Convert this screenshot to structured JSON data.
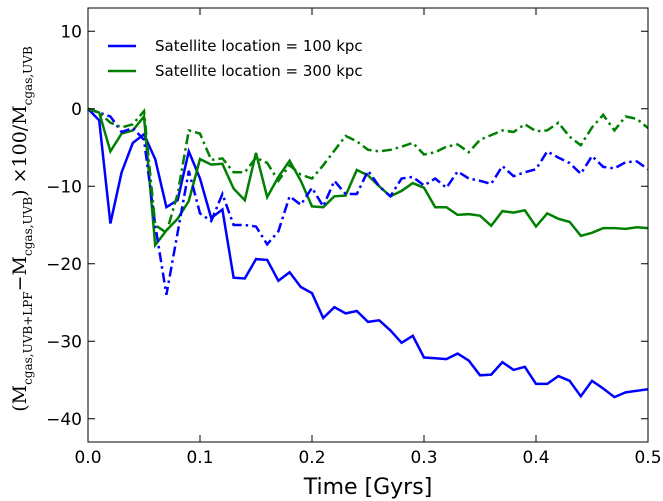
{
  "chart_data": {
    "type": "line",
    "title": "",
    "xlabel": "Time [Gyrs]",
    "ylabel": {
      "open": "(M",
      "sub1": "cgas,UVB+LPF",
      "mid": "−M",
      "sub2": "cgas,UVB",
      "mid2": ") ×100/M",
      "sub3": "cgas,UVB"
    },
    "xlim": [
      0.0,
      0.5
    ],
    "ylim": [
      -43,
      13
    ],
    "xticks": [
      0.0,
      0.1,
      0.2,
      0.3,
      0.4,
      0.5
    ],
    "xtick_labels": [
      "0.0",
      "0.1",
      "0.2",
      "0.3",
      "0.4",
      "0.5"
    ],
    "yticks": [
      10,
      0,
      -10,
      -20,
      -30,
      -40
    ],
    "ytick_labels": [
      "10",
      "0",
      "−10",
      "−20",
      "−30",
      "−40"
    ],
    "grid": false,
    "legend_position": "top-left",
    "series": [
      {
        "name": "Satellite location = 100 kpc",
        "color": "#0000ff",
        "style": "solid",
        "x": [
          0.0,
          0.01,
          0.02,
          0.03,
          0.04,
          0.05,
          0.06,
          0.07,
          0.08,
          0.09,
          0.1,
          0.11,
          0.12,
          0.13,
          0.14,
          0.15,
          0.16,
          0.17,
          0.18,
          0.19,
          0.2,
          0.21,
          0.22,
          0.23,
          0.24,
          0.25,
          0.26,
          0.27,
          0.28,
          0.29,
          0.3,
          0.31,
          0.32,
          0.33,
          0.34,
          0.35,
          0.36,
          0.37,
          0.38,
          0.39,
          0.4,
          0.41,
          0.42,
          0.43,
          0.44,
          0.45,
          0.46,
          0.47,
          0.48,
          0.49,
          0.5
        ],
        "values": [
          0,
          -1.5,
          -14.8,
          -8.2,
          -4.4,
          -3.3,
          -6.5,
          -12.7,
          -11.8,
          -5.5,
          -9.0,
          -14.1,
          -13.0,
          -21.8,
          -21.9,
          -19.4,
          -19.5,
          -22.2,
          -21.1,
          -23.0,
          -23.8,
          -27.0,
          -25.6,
          -26.4,
          -26.1,
          -27.5,
          -27.3,
          -28.6,
          -30.2,
          -29.3,
          -32.1,
          -32.2,
          -32.3,
          -31.6,
          -32.5,
          -34.4,
          -34.3,
          -32.7,
          -33.7,
          -33.3,
          -35.5,
          -35.5,
          -34.5,
          -35.1,
          -37.1,
          -35.1,
          -36.1,
          -37.2,
          -36.6,
          -36.4,
          -36.2
        ]
      },
      {
        "name": "Satellite location = 300 kpc",
        "color": "#008000",
        "style": "solid",
        "x": [
          0.0,
          0.01,
          0.02,
          0.03,
          0.04,
          0.05,
          0.06,
          0.07,
          0.08,
          0.09,
          0.1,
          0.11,
          0.12,
          0.13,
          0.14,
          0.15,
          0.16,
          0.17,
          0.18,
          0.19,
          0.2,
          0.21,
          0.22,
          0.23,
          0.24,
          0.25,
          0.26,
          0.27,
          0.28,
          0.29,
          0.3,
          0.31,
          0.32,
          0.33,
          0.34,
          0.35,
          0.36,
          0.37,
          0.38,
          0.39,
          0.4,
          0.41,
          0.42,
          0.43,
          0.44,
          0.45,
          0.46,
          0.47,
          0.48,
          0.49,
          0.5
        ],
        "values": [
          0,
          -0.5,
          -5.5,
          -3.2,
          -2.8,
          -1.0,
          -17.6,
          -15.7,
          -14.2,
          -11.9,
          -6.5,
          -7.2,
          -7.1,
          -10.3,
          -11.8,
          -5.7,
          -11.4,
          -8.8,
          -6.7,
          -9.3,
          -12.6,
          -12.7,
          -11.3,
          -11.2,
          -7.9,
          -8.6,
          -10.0,
          -11.3,
          -10.6,
          -9.6,
          -10.2,
          -12.7,
          -12.7,
          -13.7,
          -13.6,
          -13.8,
          -15.1,
          -13.2,
          -13.4,
          -13.1,
          -15.2,
          -13.5,
          -14.2,
          -14.6,
          -16.4,
          -16.0,
          -15.4,
          -15.4,
          -15.5,
          -15.3,
          -15.4
        ]
      },
      {
        "name": "",
        "color": "#0000ff",
        "style": "dashdot",
        "x": [
          0.0,
          0.01,
          0.02,
          0.03,
          0.04,
          0.05,
          0.06,
          0.07,
          0.08,
          0.09,
          0.1,
          0.11,
          0.12,
          0.13,
          0.14,
          0.15,
          0.16,
          0.17,
          0.18,
          0.19,
          0.2,
          0.21,
          0.22,
          0.23,
          0.24,
          0.25,
          0.26,
          0.27,
          0.28,
          0.29,
          0.3,
          0.31,
          0.32,
          0.33,
          0.34,
          0.35,
          0.36,
          0.37,
          0.38,
          0.39,
          0.4,
          0.41,
          0.42,
          0.43,
          0.44,
          0.45,
          0.46,
          0.47,
          0.48,
          0.49,
          0.5
        ],
        "values": [
          0,
          -0.5,
          -1.0,
          -3.0,
          -2.5,
          -4.0,
          -15.0,
          -24.0,
          -16.0,
          -8.0,
          -13.5,
          -14.5,
          -11.0,
          -15.0,
          -15.0,
          -15.2,
          -17.5,
          -15.8,
          -11.3,
          -12.4,
          -10.2,
          -12.6,
          -9.3,
          -11.0,
          -11.0,
          -8.0,
          -10.0,
          -11.3,
          -9.0,
          -8.8,
          -9.9,
          -9.0,
          -10.2,
          -8.1,
          -9.0,
          -9.3,
          -9.7,
          -7.4,
          -8.7,
          -8.2,
          -7.8,
          -5.5,
          -6.3,
          -7.0,
          -8.4,
          -6.1,
          -7.5,
          -7.7,
          -6.9,
          -6.8,
          -7.8
        ]
      },
      {
        "name": "",
        "color": "#008000",
        "style": "dashdot",
        "x": [
          0.0,
          0.01,
          0.02,
          0.03,
          0.04,
          0.05,
          0.06,
          0.07,
          0.08,
          0.09,
          0.1,
          0.11,
          0.12,
          0.13,
          0.14,
          0.15,
          0.16,
          0.17,
          0.18,
          0.19,
          0.2,
          0.21,
          0.22,
          0.23,
          0.24,
          0.25,
          0.26,
          0.27,
          0.28,
          0.29,
          0.3,
          0.31,
          0.32,
          0.33,
          0.34,
          0.35,
          0.36,
          0.37,
          0.38,
          0.39,
          0.4,
          0.41,
          0.42,
          0.43,
          0.44,
          0.45,
          0.46,
          0.47,
          0.48,
          0.49,
          0.5
        ],
        "values": [
          0,
          -0.5,
          -1.8,
          -2.4,
          -2.0,
          -0.3,
          -15.0,
          -16.0,
          -11.0,
          -2.8,
          -3.2,
          -6.6,
          -6.4,
          -8.2,
          -8.2,
          -6.3,
          -7.0,
          -9.3,
          -7.3,
          -8.5,
          -9.0,
          -7.3,
          -5.4,
          -3.5,
          -4.2,
          -5.3,
          -5.5,
          -5.3,
          -4.9,
          -4.4,
          -5.9,
          -5.6,
          -4.9,
          -4.6,
          -5.6,
          -4.0,
          -3.4,
          -2.8,
          -3.0,
          -2.0,
          -2.9,
          -2.8,
          -1.8,
          -3.6,
          -4.7,
          -2.4,
          -0.8,
          -2.8,
          -1.0,
          -1.3,
          -2.5
        ]
      }
    ]
  }
}
